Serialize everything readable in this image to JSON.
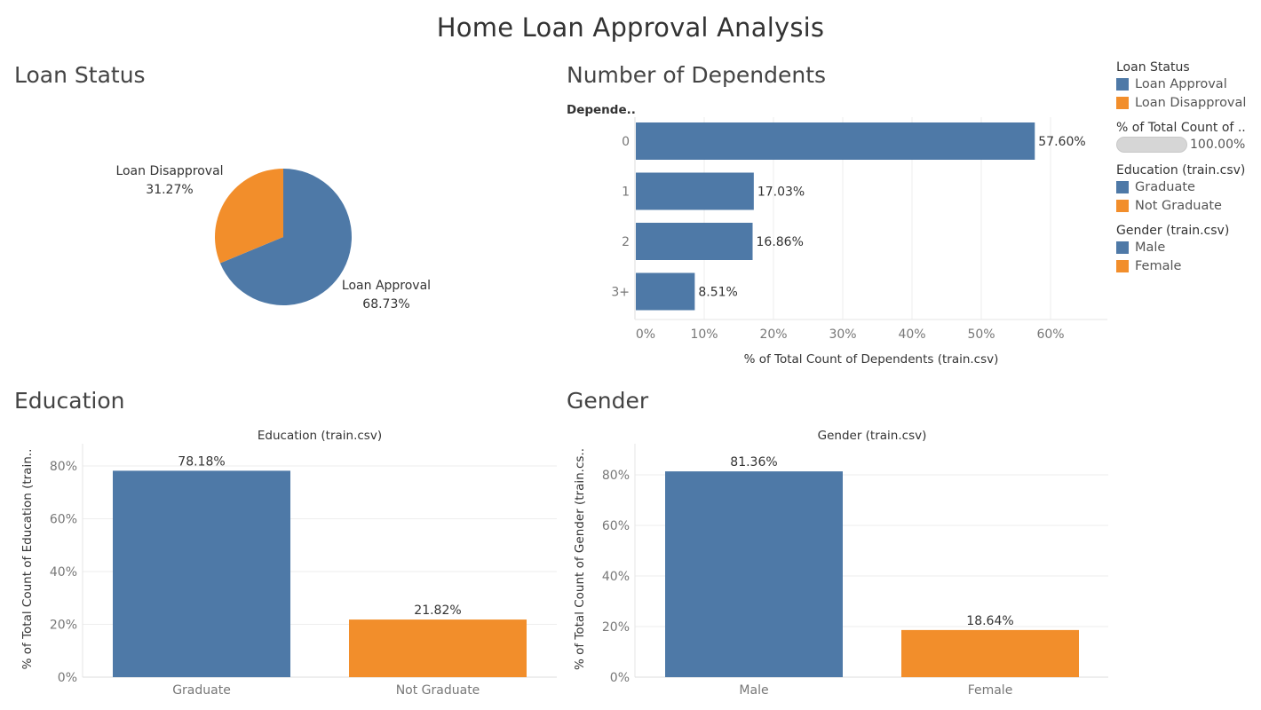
{
  "title": "Home Loan Approval Analysis",
  "colors": {
    "blue": "#4e79a7",
    "orange": "#f28e2b",
    "grid": "#eeeeee"
  },
  "sheets": {
    "loan_status": "Loan Status",
    "dependents": "Number of Dependents",
    "education": "Education",
    "gender": "Gender"
  },
  "legend": {
    "loan_status": {
      "title": "Loan Status",
      "items": [
        "Loan Approval",
        "Loan Disapproval"
      ]
    },
    "pct_total": {
      "title": "% of Total Count of ..",
      "value": "100.00%"
    },
    "education": {
      "title": "Education (train.csv)",
      "items": [
        "Graduate",
        "Not Graduate"
      ]
    },
    "gender": {
      "title": "Gender (train.csv)",
      "items": [
        "Male",
        "Female"
      ]
    }
  },
  "chart_data": [
    {
      "type": "pie",
      "categories": [
        "Loan Approval",
        "Loan Disapproval"
      ],
      "values": [
        68.73,
        31.27
      ],
      "labels": [
        "68.73%",
        "31.27%"
      ]
    },
    {
      "type": "bar",
      "orientation": "horizontal",
      "row_header": "Depende..",
      "categories": [
        "0",
        "1",
        "2",
        "3+"
      ],
      "values": [
        57.6,
        17.03,
        16.86,
        8.51
      ],
      "labels": [
        "57.60%",
        "17.03%",
        "16.86%",
        "8.51%"
      ],
      "xlabel": "% of Total Count of Dependents (train.csv)",
      "xticks": [
        "0%",
        "10%",
        "20%",
        "30%",
        "40%",
        "50%",
        "60%"
      ],
      "xlim": [
        0,
        69
      ]
    },
    {
      "type": "bar",
      "header": "Education (train.csv)",
      "categories": [
        "Graduate",
        "Not Graduate"
      ],
      "values": [
        78.18,
        21.82
      ],
      "labels": [
        "78.18%",
        "21.82%"
      ],
      "ylabel": "% of Total Count of Education (train..",
      "yticks": [
        "0%",
        "20%",
        "40%",
        "60%",
        "80%"
      ],
      "ylim": [
        0,
        87
      ]
    },
    {
      "type": "bar",
      "header": "Gender (train.csv)",
      "categories": [
        "Male",
        "Female"
      ],
      "values": [
        81.36,
        18.64
      ],
      "labels": [
        "81.36%",
        "18.64%"
      ],
      "ylabel": "% of Total Count of Gender (train.cs..",
      "yticks": [
        "0%",
        "20%",
        "40%",
        "60%",
        "80%"
      ],
      "ylim": [
        0,
        90
      ]
    }
  ]
}
